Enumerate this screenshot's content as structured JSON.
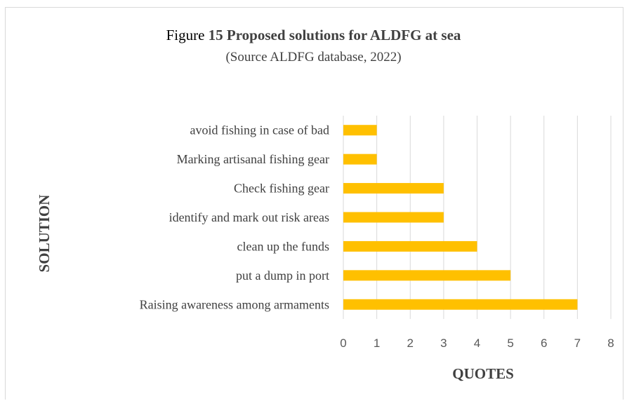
{
  "chart_data": {
    "type": "bar",
    "orientation": "horizontal",
    "title_prefix": "Figure",
    "title_main": "15 Proposed solutions for ALDFG at sea",
    "subtitle": "(Source ALDFG database, 2022)",
    "xlabel": "QUOTES",
    "ylabel": "SOLUTION",
    "xlim": [
      0,
      8
    ],
    "xticks": [
      "0",
      "1",
      "2",
      "3",
      "4",
      "5",
      "6",
      "7",
      "8"
    ],
    "grid": "vertical",
    "legend": "none",
    "bar_color": "#ffc000",
    "categories": [
      "avoid fishing in case of bad",
      "Marking artisanal   fishing gear",
      "Check fishing gear",
      "identify and mark out risk areas",
      "clean up the funds",
      "put a dump in port",
      "Raising awareness among armaments"
    ],
    "values": [
      1,
      1,
      3,
      3,
      4,
      5,
      7
    ]
  }
}
